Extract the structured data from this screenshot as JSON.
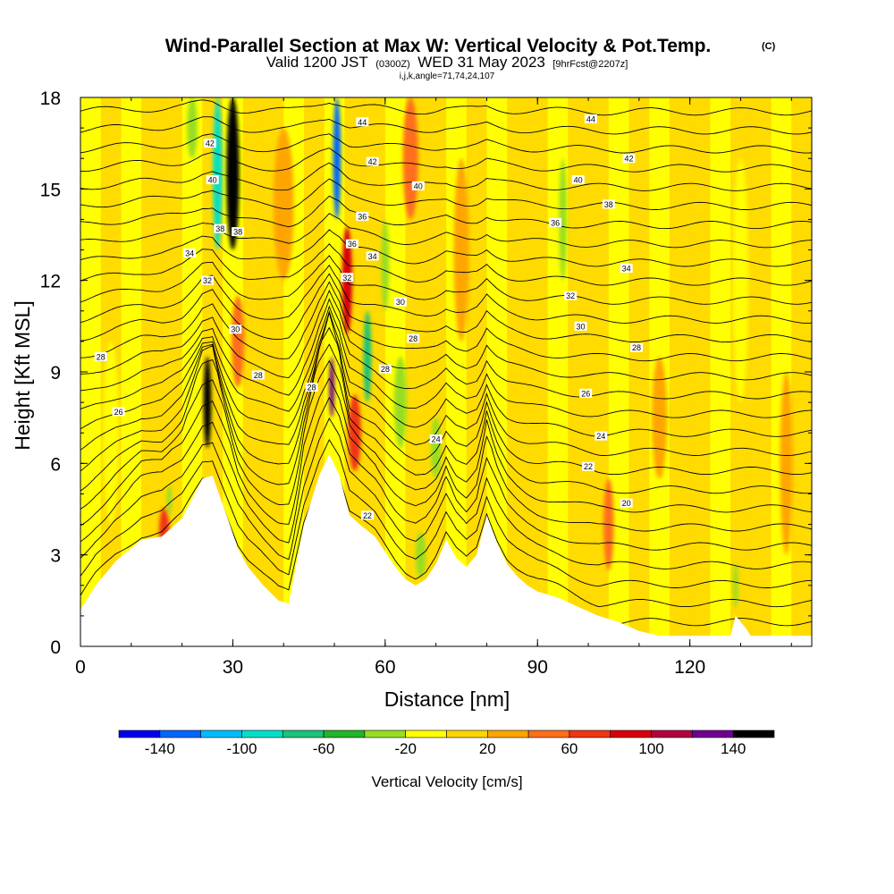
{
  "header": {
    "title": "Wind-Parallel Section at Max W: Vertical Velocity & Pot.Temp.",
    "copyright": "(C)",
    "valid_prefix": "Valid 1200 JST",
    "valid_utc": "(0300Z)",
    "valid_date": "WED 31 May 2023",
    "forecast_tag": "[9hrFcst@2207z]",
    "indices": "i,j,k,angle=71,74,24,107"
  },
  "colors": {
    "terrain": "#ffffff",
    "contour": "#000000",
    "palette": [
      "#0000ee",
      "#0066ff",
      "#00bbff",
      "#00e0c8",
      "#19c37d",
      "#20b42a",
      "#99dd22",
      "#ffff00",
      "#ffd500",
      "#ffa500",
      "#ff6e1a",
      "#f03512",
      "#d8000c",
      "#b30040",
      "#700090"
    ]
  },
  "chart_data": {
    "type": "heatmap",
    "xlabel": "Distance [nm]",
    "ylabel": "Height [Kft MSL]",
    "xlim": [
      0,
      144
    ],
    "ylim": [
      0,
      18
    ],
    "xticks": [
      0,
      30,
      60,
      90,
      120
    ],
    "yticks": [
      0,
      3,
      6,
      9,
      12,
      15,
      18
    ],
    "grid": false,
    "colorbar": {
      "title": "Vertical Velocity [cm/s]",
      "bounds": [
        -160,
        -140,
        -120,
        -100,
        -80,
        -60,
        -40,
        -20,
        0,
        20,
        40,
        60,
        80,
        100,
        120,
        140,
        160
      ],
      "labels": [
        -140,
        -100,
        -60,
        -20,
        20,
        60,
        100,
        140
      ]
    },
    "terrain_profile": {
      "x": [
        0,
        3,
        7,
        12,
        16,
        20,
        24,
        26,
        29,
        31,
        33,
        36,
        39,
        41,
        44,
        47,
        49,
        51,
        53,
        55,
        58,
        60,
        62,
        64,
        66,
        68,
        70,
        72,
        74,
        76,
        78,
        80,
        82,
        84,
        86,
        88,
        90,
        94,
        98,
        102,
        106,
        110,
        114,
        118,
        122,
        128,
        129,
        131,
        132,
        144
      ],
      "height_kft": [
        1.2,
        2.0,
        2.8,
        3.5,
        3.6,
        4.2,
        5.5,
        5.6,
        4.2,
        3.2,
        2.6,
        2.0,
        1.5,
        1.4,
        4.0,
        5.6,
        6.3,
        5.6,
        4.3,
        4.0,
        3.6,
        3.1,
        2.6,
        2.2,
        2.0,
        2.2,
        2.7,
        3.5,
        2.9,
        2.6,
        3.0,
        4.3,
        3.4,
        2.7,
        2.3,
        2.0,
        1.8,
        1.6,
        1.3,
        1.0,
        0.8,
        0.5,
        0.35,
        0.35,
        0.35,
        0.35,
        1.0,
        0.6,
        0.35,
        0.35
      ]
    },
    "vertical_velocity_cells": [
      {
        "x": 25,
        "height_kft": 8.0,
        "width_nm": 1.5,
        "depth_kft": 3.0,
        "w_cms": 140
      },
      {
        "x": 30,
        "height_kft": 15.5,
        "width_nm": 2.5,
        "depth_kft": 5.0,
        "w_cms": 140
      },
      {
        "x": 27,
        "height_kft": 15.5,
        "width_nm": 1.8,
        "depth_kft": 5.0,
        "w_cms": -100
      },
      {
        "x": 31,
        "height_kft": 10.0,
        "width_nm": 2.5,
        "depth_kft": 3.0,
        "w_cms": 40
      },
      {
        "x": 50.5,
        "height_kft": 16.0,
        "width_nm": 1.5,
        "depth_kft": 4.0,
        "w_cms": -140
      },
      {
        "x": 52.5,
        "height_kft": 12.0,
        "width_nm": 2.0,
        "depth_kft": 3.5,
        "w_cms": 80
      },
      {
        "x": 49.5,
        "height_kft": 8.5,
        "width_nm": 1.0,
        "depth_kft": 2.0,
        "w_cms": 120
      },
      {
        "x": 56.5,
        "height_kft": 9.5,
        "width_nm": 1.5,
        "depth_kft": 3.0,
        "w_cms": -80
      },
      {
        "x": 54.0,
        "height_kft": 7.0,
        "width_nm": 2.5,
        "depth_kft": 2.5,
        "w_cms": 60
      },
      {
        "x": 60,
        "height_kft": 12.5,
        "width_nm": 1.5,
        "depth_kft": 3.0,
        "w_cms": -40
      },
      {
        "x": 63,
        "height_kft": 8.0,
        "width_nm": 2.5,
        "depth_kft": 3.0,
        "w_cms": -40
      },
      {
        "x": 70,
        "height_kft": 6.5,
        "width_nm": 2.0,
        "depth_kft": 2.0,
        "w_cms": -40
      },
      {
        "x": 67,
        "height_kft": 3.0,
        "width_nm": 2.0,
        "depth_kft": 1.5,
        "w_cms": -40
      },
      {
        "x": 95,
        "height_kft": 14.0,
        "width_nm": 1.5,
        "depth_kft": 4.0,
        "w_cms": -40
      },
      {
        "x": 22,
        "height_kft": 17.0,
        "width_nm": 2.0,
        "depth_kft": 2.0,
        "w_cms": -40
      },
      {
        "x": 16.5,
        "height_kft": 3.8,
        "width_nm": 2.0,
        "depth_kft": 1.5,
        "w_cms": 60
      },
      {
        "x": 17.5,
        "height_kft": 4.8,
        "width_nm": 1.0,
        "depth_kft": 1.0,
        "w_cms": -40
      },
      {
        "x": 65,
        "height_kft": 16.0,
        "width_nm": 3.0,
        "depth_kft": 4.0,
        "w_cms": 40
      },
      {
        "x": 75,
        "height_kft": 13.0,
        "width_nm": 3.0,
        "depth_kft": 6.0,
        "w_cms": 20
      },
      {
        "x": 104,
        "height_kft": 4.0,
        "width_nm": 2.0,
        "depth_kft": 3.0,
        "w_cms": 40
      },
      {
        "x": 129,
        "height_kft": 2.0,
        "width_nm": 1.0,
        "depth_kft": 1.5,
        "w_cms": -40
      },
      {
        "x": 130,
        "height_kft": 12.0,
        "width_nm": 3.0,
        "depth_kft": 8.0,
        "w_cms": -20
      },
      {
        "x": 139,
        "height_kft": 6.0,
        "width_nm": 2.5,
        "depth_kft": 6.0,
        "w_cms": 20
      },
      {
        "x": 6,
        "height_kft": 7.0,
        "width_nm": 3.0,
        "depth_kft": 6.0,
        "w_cms": -20
      },
      {
        "x": 114,
        "height_kft": 7.5,
        "width_nm": 3.0,
        "depth_kft": 4.0,
        "w_cms": 20
      },
      {
        "x": 40,
        "height_kft": 14.5,
        "width_nm": 4.0,
        "depth_kft": 5.0,
        "w_cms": 20
      }
    ],
    "contour_labels": [
      {
        "x": 4,
        "height_kft": 9.5,
        "text": "28"
      },
      {
        "x": 7.5,
        "height_kft": 7.7,
        "text": "26"
      },
      {
        "x": 21.5,
        "height_kft": 12.9,
        "text": "34"
      },
      {
        "x": 25.5,
        "height_kft": 16.5,
        "text": "42"
      },
      {
        "x": 26,
        "height_kft": 15.3,
        "text": "40"
      },
      {
        "x": 27.5,
        "height_kft": 13.7,
        "text": "38"
      },
      {
        "x": 31,
        "height_kft": 13.6,
        "text": "38"
      },
      {
        "x": 25,
        "height_kft": 12.0,
        "text": "32"
      },
      {
        "x": 30.5,
        "height_kft": 10.4,
        "text": "30"
      },
      {
        "x": 35,
        "height_kft": 8.9,
        "text": "28"
      },
      {
        "x": 45.5,
        "height_kft": 8.5,
        "text": "28"
      },
      {
        "x": 55.5,
        "height_kft": 17.2,
        "text": "44"
      },
      {
        "x": 57.5,
        "height_kft": 15.9,
        "text": "42"
      },
      {
        "x": 66.5,
        "height_kft": 15.1,
        "text": "40"
      },
      {
        "x": 55.5,
        "height_kft": 14.1,
        "text": "36"
      },
      {
        "x": 53.5,
        "height_kft": 13.2,
        "text": "36"
      },
      {
        "x": 57.5,
        "height_kft": 12.8,
        "text": "34"
      },
      {
        "x": 52.5,
        "height_kft": 12.1,
        "text": "32"
      },
      {
        "x": 63,
        "height_kft": 11.3,
        "text": "30"
      },
      {
        "x": 65.5,
        "height_kft": 10.1,
        "text": "28"
      },
      {
        "x": 60,
        "height_kft": 9.1,
        "text": "28"
      },
      {
        "x": 70,
        "height_kft": 6.8,
        "text": "24"
      },
      {
        "x": 56.5,
        "height_kft": 4.3,
        "text": "22"
      },
      {
        "x": 100.5,
        "height_kft": 17.3,
        "text": "44"
      },
      {
        "x": 108,
        "height_kft": 16.0,
        "text": "42"
      },
      {
        "x": 98,
        "height_kft": 15.3,
        "text": "40"
      },
      {
        "x": 104,
        "height_kft": 14.5,
        "text": "38"
      },
      {
        "x": 93.5,
        "height_kft": 13.9,
        "text": "36"
      },
      {
        "x": 107.5,
        "height_kft": 12.4,
        "text": "34"
      },
      {
        "x": 96.5,
        "height_kft": 11.5,
        "text": "32"
      },
      {
        "x": 98.5,
        "height_kft": 10.5,
        "text": "30"
      },
      {
        "x": 109.5,
        "height_kft": 9.8,
        "text": "28"
      },
      {
        "x": 99.5,
        "height_kft": 8.3,
        "text": "26"
      },
      {
        "x": 102.5,
        "height_kft": 6.9,
        "text": "24"
      },
      {
        "x": 100,
        "height_kft": 5.9,
        "text": "22"
      },
      {
        "x": 107.5,
        "height_kft": 4.7,
        "text": "20"
      }
    ]
  }
}
